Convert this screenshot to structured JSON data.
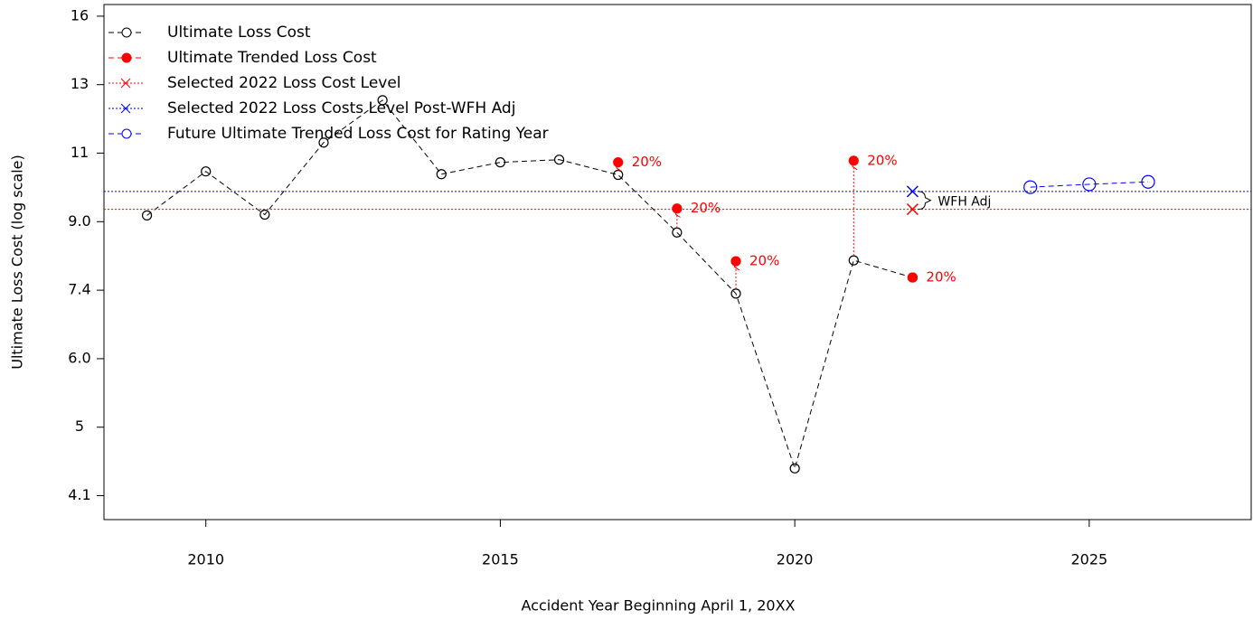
{
  "chart_data": {
    "type": "line",
    "x_label": "Accident Year Beginning April 1, 20XX",
    "y_label": "Ultimate Loss Cost (log scale)",
    "log_y": true,
    "xlim": [
      2008.27,
      2027.75
    ],
    "ylim": [
      3.83,
      16.55
    ],
    "xticks": [
      2010,
      2015,
      2020,
      2025
    ],
    "yticks": [
      {
        "value": 4.1,
        "label": "4.1"
      },
      {
        "value": 4.98,
        "label": "5"
      },
      {
        "value": 6.05,
        "label": "6.0"
      },
      {
        "value": 7.35,
        "label": "7.4"
      },
      {
        "value": 8.93,
        "label": "9.0"
      },
      {
        "value": 10.85,
        "label": "11"
      },
      {
        "value": 13.18,
        "label": "13"
      },
      {
        "value": 16.01,
        "label": "16"
      }
    ],
    "legend_position": "top-left",
    "series": [
      {
        "name": "Ultimate Loss Cost",
        "color": "#000000",
        "marker": "open-circle",
        "line": "dashed",
        "x": [
          2009,
          2010,
          2011,
          2012,
          2013,
          2014,
          2015,
          2016,
          2017,
          2018,
          2019,
          2020,
          2021,
          2022
        ],
        "values": [
          9.09,
          10.3,
          9.11,
          11.18,
          12.61,
          10.22,
          10.57,
          10.65,
          10.2,
          8.66,
          7.28,
          4.43,
          8.0,
          7.62
        ]
      },
      {
        "name": "Ultimate Trended Loss Cost",
        "color": "#ff0000",
        "marker": "filled-circle",
        "line": "dashed",
        "x": [
          2017,
          2018,
          2019,
          2021,
          2022
        ],
        "values": [
          10.57,
          9.27,
          7.98,
          10.62,
          7.62
        ],
        "change_labels": [
          "20%",
          "20%",
          "20%",
          "20%",
          "20%"
        ]
      },
      {
        "name": "Selected 2022 Loss Cost Level",
        "color": "#ff0000",
        "marker": "x",
        "line": "dotted",
        "x": [
          2022
        ],
        "values": [
          9.25
        ]
      },
      {
        "name": "Selected 2022 Loss Costs Level Post-WFH Adj",
        "color": "#0000ff",
        "marker": "x",
        "line": "dotted",
        "x": [
          2022
        ],
        "values": [
          9.73
        ]
      },
      {
        "name": "Future Ultimate Trended Loss Cost for Rating Year",
        "color": "#0000ff",
        "marker": "open-circle-large",
        "line": "dashed",
        "x": [
          2024,
          2025,
          2026
        ],
        "values": [
          9.85,
          9.93,
          10.0
        ]
      }
    ],
    "annotation": "WFH Adj"
  }
}
